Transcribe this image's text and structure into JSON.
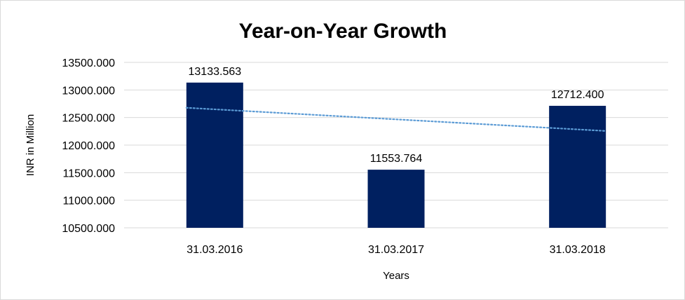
{
  "chart_data": {
    "type": "bar",
    "title": "Year-on-Year Growth",
    "xlabel": "Years",
    "ylabel": "INR in Million",
    "categories": [
      "31.03.2016",
      "31.03.2017",
      "31.03.2018"
    ],
    "values": [
      13133.563,
      11553.764,
      12712.4
    ],
    "data_labels": [
      "13133.563",
      "11553.764",
      "12712.400"
    ],
    "yticks": [
      10500,
      11000,
      11500,
      12000,
      12500,
      13000,
      13500
    ],
    "ytick_labels": [
      "10500.000",
      "11000.000",
      "11500.000",
      "12000.000",
      "12500.000",
      "13000.000",
      "13500.000"
    ],
    "ylim": [
      10500,
      13500
    ],
    "grid": true,
    "legend": "none",
    "trendline": {
      "type": "linear",
      "style": "dotted",
      "color": "#5B9BD5"
    },
    "colors": {
      "bar": "#002060",
      "grid": "#d9d9d9",
      "trendline": "#5B9BD5"
    }
  }
}
